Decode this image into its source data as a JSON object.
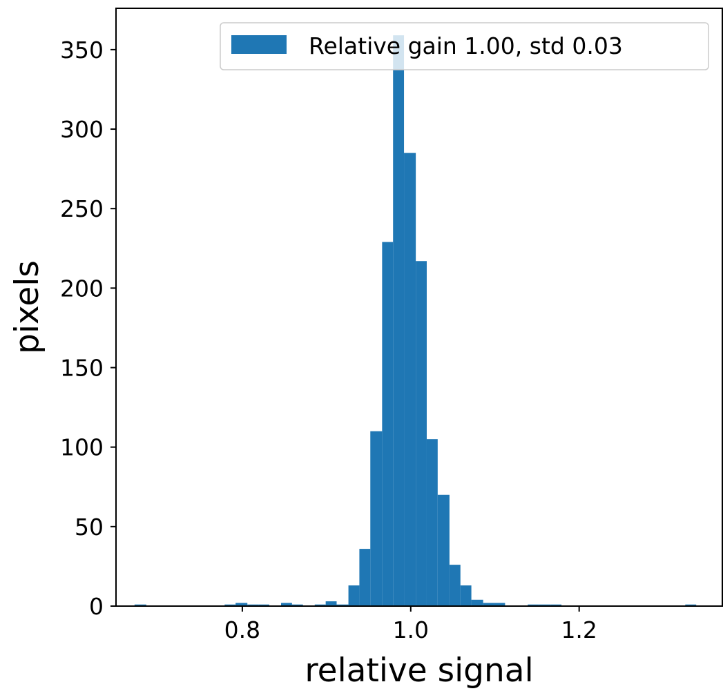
{
  "chart_data": {
    "type": "bar",
    "subtype": "histogram",
    "xlabel": "relative signal",
    "ylabel": "pixels",
    "xlim": [
      0.65,
      1.37
    ],
    "ylim": [
      0,
      376
    ],
    "x_ticks": [
      0.8,
      1.0,
      1.2
    ],
    "x_tick_labels": [
      "0.8",
      "1.0",
      "1.2"
    ],
    "y_ticks": [
      0,
      50,
      100,
      150,
      200,
      250,
      300,
      350
    ],
    "y_tick_labels": [
      "0",
      "50",
      "100",
      "150",
      "200",
      "250",
      "300",
      "350"
    ],
    "grid": false,
    "legend": {
      "position": "top-right",
      "entries": [
        "Relative gain 1.00, std  0.03"
      ]
    },
    "color": "#1f77b4",
    "bin_width": 0.0133,
    "series": [
      {
        "name": "Relative gain 1.00, std  0.03",
        "bins": [
          {
            "x0": 0.672,
            "x1": 0.686,
            "value": 1
          },
          {
            "x0": 0.779,
            "x1": 0.792,
            "value": 1
          },
          {
            "x0": 0.792,
            "x1": 0.806,
            "value": 2
          },
          {
            "x0": 0.806,
            "x1": 0.819,
            "value": 1
          },
          {
            "x0": 0.819,
            "x1": 0.832,
            "value": 1
          },
          {
            "x0": 0.846,
            "x1": 0.859,
            "value": 2
          },
          {
            "x0": 0.859,
            "x1": 0.872,
            "value": 1
          },
          {
            "x0": 0.886,
            "x1": 0.899,
            "value": 1
          },
          {
            "x0": 0.899,
            "x1": 0.912,
            "value": 3
          },
          {
            "x0": 0.912,
            "x1": 0.926,
            "value": 1
          },
          {
            "x0": 0.926,
            "x1": 0.939,
            "value": 13
          },
          {
            "x0": 0.939,
            "x1": 0.952,
            "value": 36
          },
          {
            "x0": 0.952,
            "x1": 0.966,
            "value": 110
          },
          {
            "x0": 0.966,
            "x1": 0.979,
            "value": 229
          },
          {
            "x0": 0.979,
            "x1": 0.992,
            "value": 359
          },
          {
            "x0": 0.992,
            "x1": 1.006,
            "value": 285
          },
          {
            "x0": 1.006,
            "x1": 1.019,
            "value": 217
          },
          {
            "x0": 1.019,
            "x1": 1.032,
            "value": 105
          },
          {
            "x0": 1.032,
            "x1": 1.046,
            "value": 70
          },
          {
            "x0": 1.046,
            "x1": 1.059,
            "value": 26
          },
          {
            "x0": 1.059,
            "x1": 1.072,
            "value": 13
          },
          {
            "x0": 1.072,
            "x1": 1.086,
            "value": 4
          },
          {
            "x0": 1.086,
            "x1": 1.099,
            "value": 2
          },
          {
            "x0": 1.099,
            "x1": 1.112,
            "value": 2
          },
          {
            "x0": 1.139,
            "x1": 1.152,
            "value": 1
          },
          {
            "x0": 1.152,
            "x1": 1.166,
            "value": 1
          },
          {
            "x0": 1.166,
            "x1": 1.179,
            "value": 1
          },
          {
            "x0": 1.326,
            "x1": 1.339,
            "value": 1
          }
        ]
      }
    ]
  }
}
